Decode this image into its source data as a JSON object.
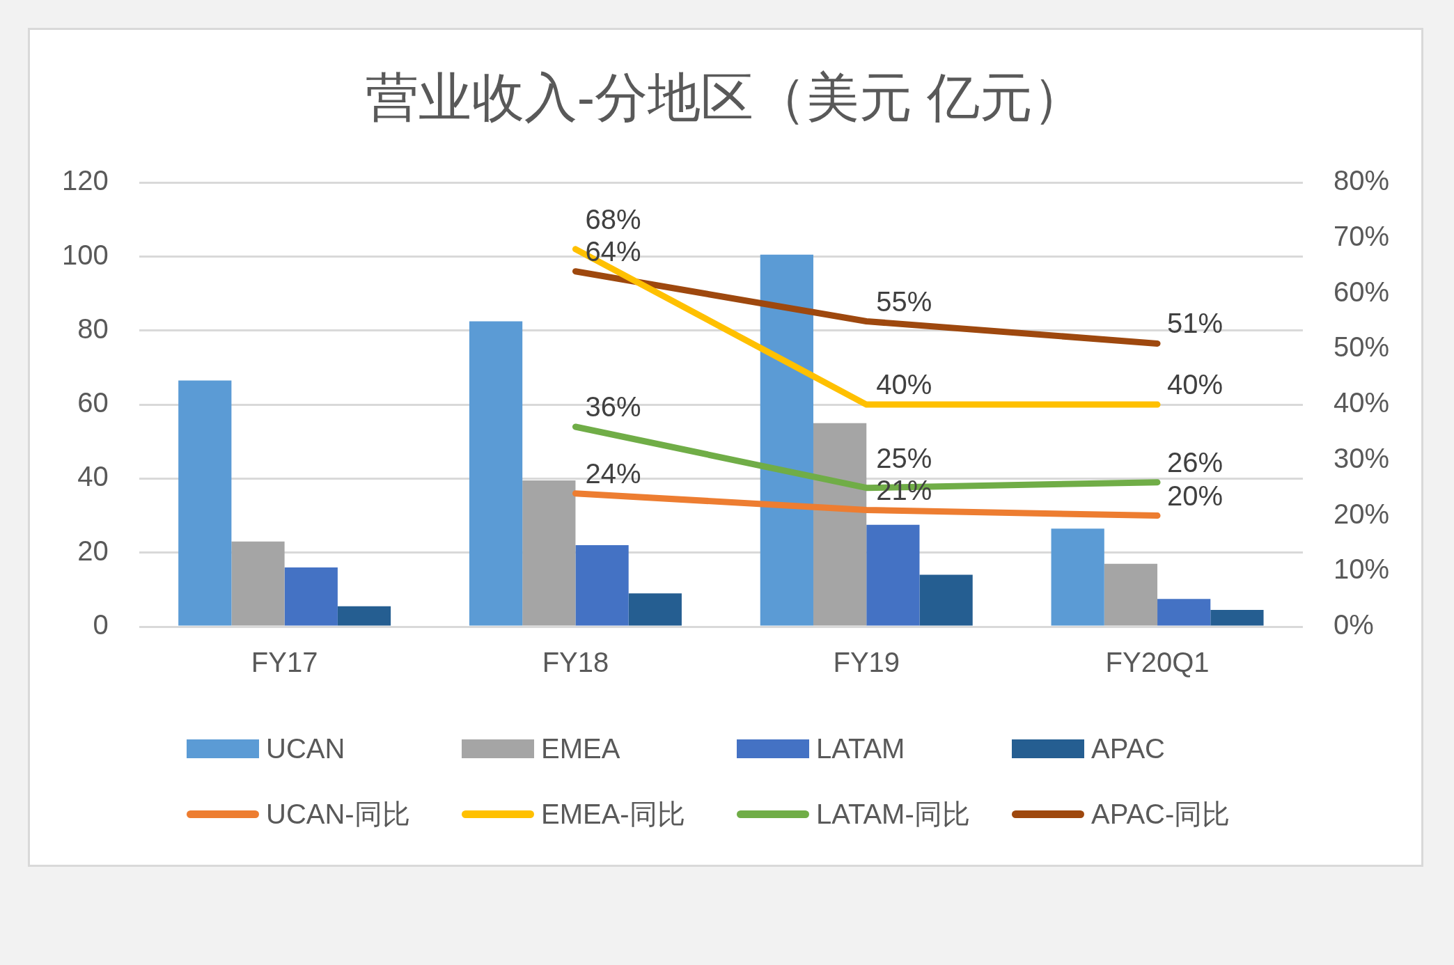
{
  "chart_data": {
    "type": "bar",
    "title": "营业收入-分地区（美元 亿元）",
    "categories": [
      "FY17",
      "FY18",
      "FY19",
      "FY20Q1"
    ],
    "series": [
      {
        "name": "UCAN",
        "color": "#5b9bd5",
        "values": [
          66.5,
          82.5,
          100.5,
          26.5
        ]
      },
      {
        "name": "EMEA",
        "color": "#a5a5a5",
        "values": [
          23,
          39.5,
          55,
          17
        ]
      },
      {
        "name": "LATAM",
        "color": "#4472c4",
        "values": [
          16,
          22,
          27.5,
          7.5
        ]
      },
      {
        "name": "APAC",
        "color": "#255e91",
        "values": [
          5.5,
          9,
          14,
          4.5
        ]
      },
      {
        "name": "UCAN-同比",
        "type": "line",
        "axis": "y2",
        "color": "#ed7d31",
        "values": [
          null,
          24,
          21,
          20
        ],
        "value_labels": [
          null,
          "24%",
          "21%",
          "20%"
        ]
      },
      {
        "name": "EMEA-同比",
        "type": "line",
        "axis": "y2",
        "color": "#ffc000",
        "values": [
          null,
          68,
          40,
          40
        ],
        "value_labels": [
          null,
          "68%",
          "40%",
          "40%"
        ]
      },
      {
        "name": "LATAM-同比",
        "type": "line",
        "axis": "y2",
        "color": "#70ad47",
        "values": [
          null,
          36,
          25,
          26
        ],
        "value_labels": [
          null,
          "36%",
          "25%",
          "26%"
        ]
      },
      {
        "name": "APAC-同比",
        "type": "line",
        "axis": "y2",
        "color": "#9e480e",
        "values": [
          null,
          64,
          55,
          51
        ],
        "value_labels": [
          null,
          "64%",
          "55%",
          "51%"
        ]
      }
    ],
    "ylim": [
      0,
      120
    ],
    "yticks": [
      0,
      20,
      40,
      60,
      80,
      100,
      120
    ],
    "y2lim": [
      0,
      80
    ],
    "y2ticks": [
      {
        "value": 0,
        "label": "0%"
      },
      {
        "value": 10,
        "label": "10%"
      },
      {
        "value": 20,
        "label": "20%"
      },
      {
        "value": 30,
        "label": "30%"
      },
      {
        "value": 40,
        "label": "40%"
      },
      {
        "value": 50,
        "label": "50%"
      },
      {
        "value": 60,
        "label": "60%"
      },
      {
        "value": 70,
        "label": "70%"
      },
      {
        "value": 80,
        "label": "80%"
      }
    ],
    "grid": "y",
    "legend": "bottom",
    "marker": "none",
    "line_style": "solid"
  }
}
